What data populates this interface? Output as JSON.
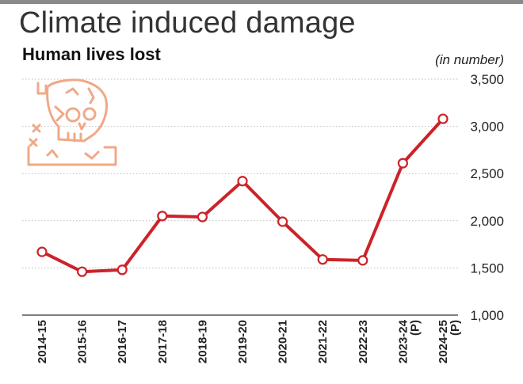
{
  "header": {
    "title": "Climate induced damage",
    "subtitle": "Human lives lost",
    "unit": "(in number)"
  },
  "icon": "cracked-skull-icon",
  "colors": {
    "line": "#cc2229",
    "marker_fill": "#ffffff",
    "icon": "#f0a987",
    "grid": "#bbbbbb"
  },
  "chart_data": {
    "type": "line",
    "title": "Climate induced damage",
    "subtitle": "Human lives lost",
    "ylabel": "(in number)",
    "categories": [
      [
        "2014-15"
      ],
      [
        "2015-16"
      ],
      [
        "2016-17"
      ],
      [
        "2017-18"
      ],
      [
        "2018-19"
      ],
      [
        "2019-20"
      ],
      [
        "2020-21"
      ],
      [
        "2021-22"
      ],
      [
        "2022-23"
      ],
      [
        "2023-24",
        "(P)"
      ],
      [
        "2024-25",
        "(P)"
      ]
    ],
    "values": [
      1670,
      1460,
      1480,
      2050,
      2040,
      2420,
      1990,
      1590,
      1580,
      2610,
      3080
    ],
    "y_ticks": [
      "1,000",
      "1,500",
      "2,000",
      "2,500",
      "3,000",
      "3,500"
    ],
    "y_tick_values": [
      1000,
      1500,
      2000,
      2500,
      3000,
      3500
    ],
    "ylim": [
      1000,
      3500
    ],
    "grid": true,
    "axis_position": "right"
  }
}
